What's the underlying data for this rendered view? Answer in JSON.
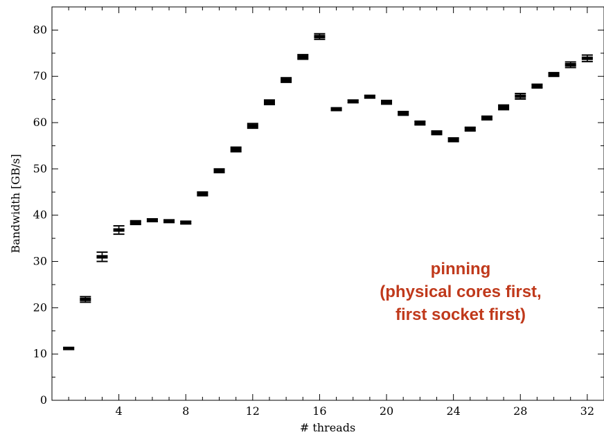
{
  "chart_data": {
    "type": "scatter",
    "xlabel": "# threads",
    "ylabel": "Bandwidth [GB/s]",
    "xlim": [
      0,
      33
    ],
    "ylim": [
      0,
      85
    ],
    "xticks": [
      4,
      8,
      12,
      16,
      20,
      24,
      28,
      32
    ],
    "xtick_labels": [
      "4",
      "8",
      "12",
      "16",
      "20",
      "24",
      "28",
      "32"
    ],
    "yticks": [
      0,
      10,
      20,
      30,
      40,
      50,
      60,
      70,
      80
    ],
    "ytick_labels": [
      "0",
      "10",
      "20",
      "30",
      "40",
      "50",
      "60",
      "70",
      "80"
    ],
    "grid": false,
    "series": [
      {
        "x": [
          1,
          2,
          3,
          4,
          5,
          6,
          7,
          8,
          9,
          10,
          11,
          12,
          13,
          14,
          15,
          16,
          17,
          18,
          19,
          20,
          21,
          22,
          23,
          24,
          25,
          26,
          27,
          28,
          29,
          30,
          31,
          32
        ],
        "y": [
          11.2,
          21.8,
          31.0,
          36.8,
          38.4,
          38.9,
          38.7,
          38.4,
          44.6,
          49.6,
          54.2,
          59.3,
          64.4,
          69.2,
          74.2,
          78.6,
          62.9,
          64.6,
          65.6,
          64.4,
          62.0,
          59.9,
          57.8,
          56.3,
          58.6,
          61.0,
          63.3,
          65.7,
          67.9,
          70.4,
          72.5,
          73.9
        ],
        "err": [
          0.2,
          0.6,
          1.0,
          0.9,
          0.4,
          0.3,
          0.3,
          0.3,
          0.4,
          0.4,
          0.5,
          0.5,
          0.5,
          0.5,
          0.5,
          0.6,
          0.3,
          0.3,
          0.3,
          0.4,
          0.4,
          0.4,
          0.4,
          0.4,
          0.4,
          0.4,
          0.5,
          0.6,
          0.4,
          0.4,
          0.6,
          0.7
        ]
      }
    ],
    "annotation": [
      "pinning",
      "(physical cores first,",
      "first socket first)"
    ],
    "annotation_color": "#c0391b"
  }
}
